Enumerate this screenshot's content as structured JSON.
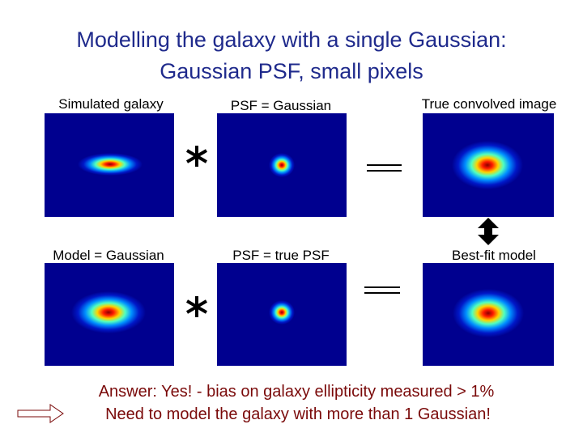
{
  "title": [
    "Modelling the galaxy with a single Gaussian:",
    "Gaussian PSF, small pixels"
  ],
  "panels": [
    {
      "label": "Simulated galaxy"
    },
    {
      "label": "PSF = Gaussian"
    },
    {
      "label": "True convolved image"
    },
    {
      "label": "Model = Gaussian"
    },
    {
      "label": "PSF = true PSF"
    },
    {
      "label": "Best-fit model"
    }
  ],
  "answer": [
    "Answer: Yes! - bias on galaxy ellipticity measured > 1%",
    "Need to model the galaxy with more than 1 Gaussian!"
  ]
}
